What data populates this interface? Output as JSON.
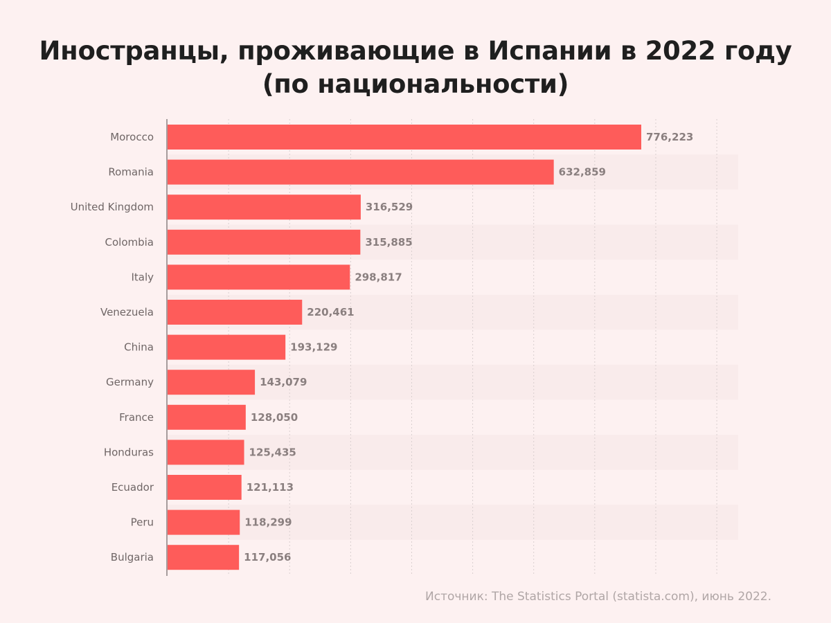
{
  "title": {
    "line1": "Иностранцы, проживающие в Испании в 2022 году",
    "line2": "(по национальности)"
  },
  "source": "Источник: The Statistics Portal (statista.com), июнь 2022.",
  "colors": {
    "background": "#fdf1f1",
    "bar": "#fe5c5a",
    "row_band": "#f9ebeb",
    "gridline": "#d9cfcf"
  },
  "chart_data": {
    "type": "bar",
    "orientation": "horizontal",
    "categories": [
      "Morocco",
      "Romania",
      "United Kingdom",
      "Colombia",
      "Italy",
      "Venezuela",
      "China",
      "Germany",
      "France",
      "Honduras",
      "Ecuador",
      "Peru",
      "Bulgaria"
    ],
    "values": [
      776223,
      632859,
      316529,
      315885,
      298817,
      220461,
      193129,
      143079,
      128050,
      125435,
      121113,
      118299,
      117056
    ],
    "value_labels": [
      "776,223",
      "632,859",
      "316,529",
      "315,885",
      "298,817",
      "220,461",
      "193,129",
      "143,079",
      "128,050",
      "125,435",
      "121,113",
      "118,299",
      "117,056"
    ],
    "xlim": [
      0,
      900000
    ],
    "grid": true
  }
}
